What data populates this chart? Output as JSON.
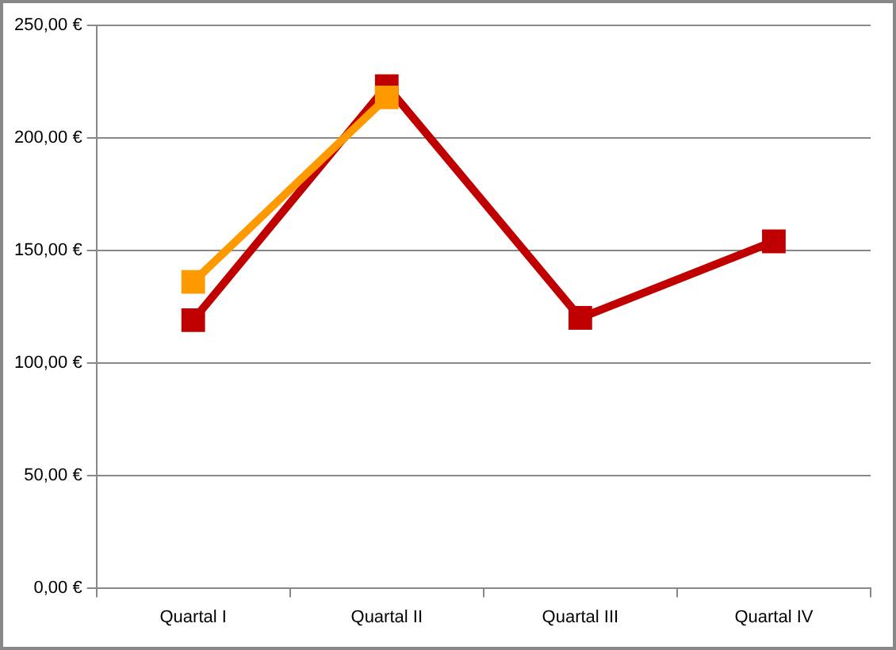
{
  "chart_data": {
    "type": "line",
    "categories": [
      "Quartal I",
      "Quartal II",
      "Quartal III",
      "Quartal IV"
    ],
    "series": [
      {
        "color": "#ff9900",
        "values": [
          136,
          218,
          null,
          null
        ]
      },
      {
        "color": "#c00000",
        "values": [
          119,
          223,
          120,
          154
        ]
      }
    ],
    "ylim": [
      0,
      250
    ],
    "yticks": [
      {
        "value": 0,
        "label": "0,00 €"
      },
      {
        "value": 50,
        "label": "50,00 €"
      },
      {
        "value": 100,
        "label": "100,00 €"
      },
      {
        "value": 150,
        "label": "150,00 €"
      },
      {
        "value": 200,
        "label": "200,00 €"
      },
      {
        "value": 250,
        "label": "250,00 €"
      }
    ],
    "grid": "y",
    "legend": false,
    "marker": "square",
    "line_style": "solid"
  }
}
